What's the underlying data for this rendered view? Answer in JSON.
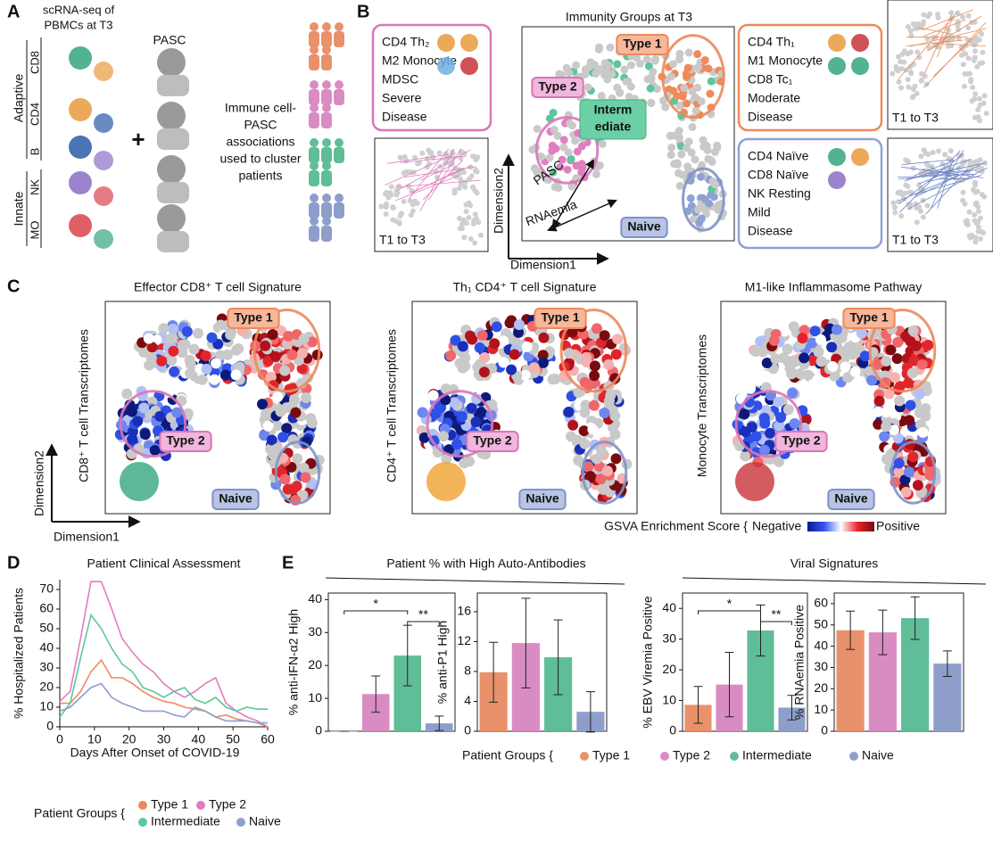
{
  "panel_a": {
    "label": "A",
    "title_lines": [
      "scRNA-seq of",
      "PBMCs at T3"
    ],
    "pasc": "PASC",
    "adaptive": "Adaptive",
    "innate": "Innate",
    "cells": [
      "CD8",
      "CD4",
      "B",
      "NK",
      "MO"
    ],
    "plus": "+",
    "association_lines": [
      "Immune cell-",
      "PASC",
      "associations",
      "used to cluster",
      "patients"
    ]
  },
  "panel_b": {
    "label": "B",
    "title": "Immunity Groups at T3",
    "type1": "Type 1",
    "type2": "Type 2",
    "naive": "Naive",
    "intermediate_lines": [
      "Interm",
      "ediate"
    ],
    "arrows": [
      "PASC",
      "RNAemia"
    ],
    "xlabel": "Dimension1",
    "ylabel": "Dimension2",
    "left_box": [
      "CD4 Th₂",
      "M2 Monocyte",
      "MDSC",
      "Severe",
      "Disease"
    ],
    "right_top_box": [
      "CD4 Th₁",
      "M1 Monocyte",
      "CD8 Tc₁",
      "Moderate",
      "Disease"
    ],
    "right_bottom_box": [
      "CD4 Naïve",
      "CD8 Naïve",
      "NK Resting",
      "Mild",
      "Disease"
    ],
    "trajectory_labels": [
      "T1 to T3",
      "T1 to T3",
      "T1 to T3"
    ]
  },
  "panel_c": {
    "label": "C",
    "titles": [
      "Effector CD8⁺ T cell Signature",
      "Th₁ CD4⁺ T cell Signature",
      "M1-like Inflammasome Pathway"
    ],
    "ylabels": [
      "CD8⁺ T cell Transcriptomes",
      "CD4⁺ T cell Transcriptomes",
      "Monocyte Transcriptomes"
    ],
    "type1": "Type 1",
    "type2": "Type 2",
    "naive": "Naive",
    "xlabel": "Dimension1",
    "ylabel": "Dimension2",
    "colorbar": {
      "title": "GSVA Enrichment Score {",
      "low": "Negative",
      "high": "Positive"
    }
  },
  "panel_d": {
    "label": "D"
  },
  "panel_e": {
    "label": "E",
    "headers": [
      "Patient % with High Auto-Antibodies",
      "Viral Signatures"
    ]
  },
  "chart_data": [
    {
      "type": "line",
      "title": "Patient Clinical Assessment",
      "xlabel": "Days After Onset of COVID-19",
      "ylabel": "% Hospitalized Patients",
      "x": [
        0,
        3,
        6,
        9,
        12,
        15,
        18,
        21,
        24,
        27,
        30,
        33,
        36,
        39,
        42,
        45,
        48,
        51,
        54,
        57,
        60
      ],
      "xlim": [
        0,
        60
      ],
      "xticks": [
        0,
        10,
        20,
        30,
        40,
        50,
        60
      ],
      "ylim": [
        0,
        75
      ],
      "yticks": [
        0,
        10,
        20,
        30,
        40,
        50,
        60,
        70
      ],
      "legend_title": "Patient Groups {",
      "series": [
        {
          "name": "Type 1",
          "color": "#ec8a5c",
          "values": [
            12,
            12,
            18,
            28,
            34,
            25,
            25,
            22,
            18,
            15,
            13,
            12,
            10,
            9,
            8,
            5,
            6,
            4,
            3,
            2,
            0
          ]
        },
        {
          "name": "Type 2",
          "color": "#e27cc0",
          "values": [
            13,
            18,
            45,
            74,
            74,
            60,
            45,
            38,
            32,
            28,
            22,
            18,
            15,
            18,
            22,
            25,
            12,
            8,
            5,
            3,
            0
          ]
        },
        {
          "name": "Intermediate",
          "color": "#5cc79b",
          "values": [
            5,
            12,
            35,
            57,
            50,
            40,
            32,
            28,
            20,
            18,
            15,
            18,
            20,
            14,
            12,
            15,
            10,
            8,
            10,
            9,
            9
          ]
        },
        {
          "name": "Naive",
          "color": "#8c9fd0",
          "values": [
            8,
            10,
            15,
            20,
            22,
            15,
            12,
            10,
            8,
            8,
            8,
            6,
            5,
            10,
            8,
            5,
            3,
            3,
            3,
            2,
            2
          ]
        }
      ]
    },
    {
      "type": "bar",
      "categories": [
        "Type 1",
        "Type 2",
        "Intermediate",
        "Naive"
      ],
      "colors": [
        "#e9916b",
        "#d98cc2",
        "#5fbd97",
        "#8e9ecb"
      ],
      "legend_title": "Patient Groups {",
      "panels": [
        {
          "ylabel": "% anti-IFN-α2 High",
          "ylim": [
            0,
            42
          ],
          "yticks": [
            0,
            10,
            20,
            30,
            40
          ],
          "values": [
            0,
            11.3,
            23,
            2.4
          ],
          "errors": [
            0,
            5.5,
            9.2,
            2.2
          ],
          "significance": [
            {
              "from": 0,
              "to": 2,
              "label": "*"
            },
            {
              "from": 2,
              "to": 3,
              "label": "**"
            }
          ]
        },
        {
          "ylabel": "% anti-P1 High",
          "ylim": [
            0,
            18.5
          ],
          "yticks": [
            0,
            4,
            8,
            12,
            16
          ],
          "values": [
            7.9,
            11.8,
            9.9,
            2.6
          ],
          "errors": [
            4,
            6,
            5,
            2.7
          ],
          "significance": []
        },
        {
          "ylabel": "% EBV Viremia Positive",
          "ylim": [
            0,
            45
          ],
          "yticks": [
            0,
            10,
            20,
            30,
            40
          ],
          "values": [
            8.6,
            15.2,
            32.8,
            7.7
          ],
          "errors": [
            6,
            10.5,
            8.3,
            4
          ],
          "significance": [
            {
              "from": 0,
              "to": 2,
              "label": "*"
            },
            {
              "from": 2,
              "to": 3,
              "label": "**"
            }
          ]
        },
        {
          "ylabel": "% RNAemia Positive",
          "ylim": [
            0,
            65
          ],
          "yticks": [
            0,
            10,
            20,
            30,
            40,
            50,
            60
          ],
          "values": [
            47.5,
            46.5,
            53.2,
            31.8
          ],
          "errors": [
            9,
            10.5,
            10,
            6
          ],
          "significance": []
        }
      ]
    }
  ]
}
